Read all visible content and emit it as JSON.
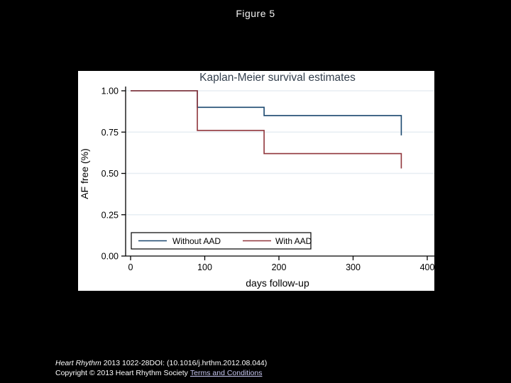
{
  "slide": {
    "title": "Figure 5",
    "background_color": "#000000"
  },
  "chart_data": {
    "type": "line",
    "step": true,
    "title": "Kaplan-Meier survival estimates",
    "xlabel": "days follow-up",
    "ylabel": "AF free (%)",
    "xlim": [
      0,
      408
    ],
    "ylim": [
      0,
      1.04
    ],
    "xticks": [
      0,
      100,
      200,
      300,
      400
    ],
    "ytick_values": [
      1.0,
      0.75,
      0.5,
      0.25,
      0.0
    ],
    "ytick_labels": [
      "1.00",
      "0.75",
      "0.50",
      "0.25",
      "0.00"
    ],
    "grid": "horizontal",
    "colors": {
      "plot_background": "#ffffff",
      "gridline": "#e7eef3",
      "axis": "#000000",
      "title_text": "#333f4d"
    },
    "series": [
      {
        "name": "Without AAD",
        "color": "#1a476f",
        "points": [
          [
            0,
            1.0
          ],
          [
            90,
            1.0
          ],
          [
            90,
            0.9
          ],
          [
            180,
            0.9
          ],
          [
            180,
            0.85
          ],
          [
            365,
            0.85
          ],
          [
            365,
            0.73
          ]
        ]
      },
      {
        "name": "With AAD",
        "color": "#90353b",
        "points": [
          [
            0,
            1.0
          ],
          [
            90,
            1.0
          ],
          [
            90,
            0.76
          ],
          [
            180,
            0.76
          ],
          [
            180,
            0.62
          ],
          [
            365,
            0.62
          ],
          [
            365,
            0.53
          ]
        ]
      }
    ],
    "legend": {
      "position": "bottom-left-inside",
      "items": [
        "Without AAD",
        "With AAD"
      ]
    }
  },
  "footer": {
    "journal": "Heart Rhythm",
    "citation": " 2013 1022-28DOI: (10.1016/j.hrthm.2012.08.044)",
    "copyright": "Copyright © 2013 Heart Rhythm Society",
    "terms_link": "Terms and Conditions",
    "link_color": "#c6c6f0"
  }
}
